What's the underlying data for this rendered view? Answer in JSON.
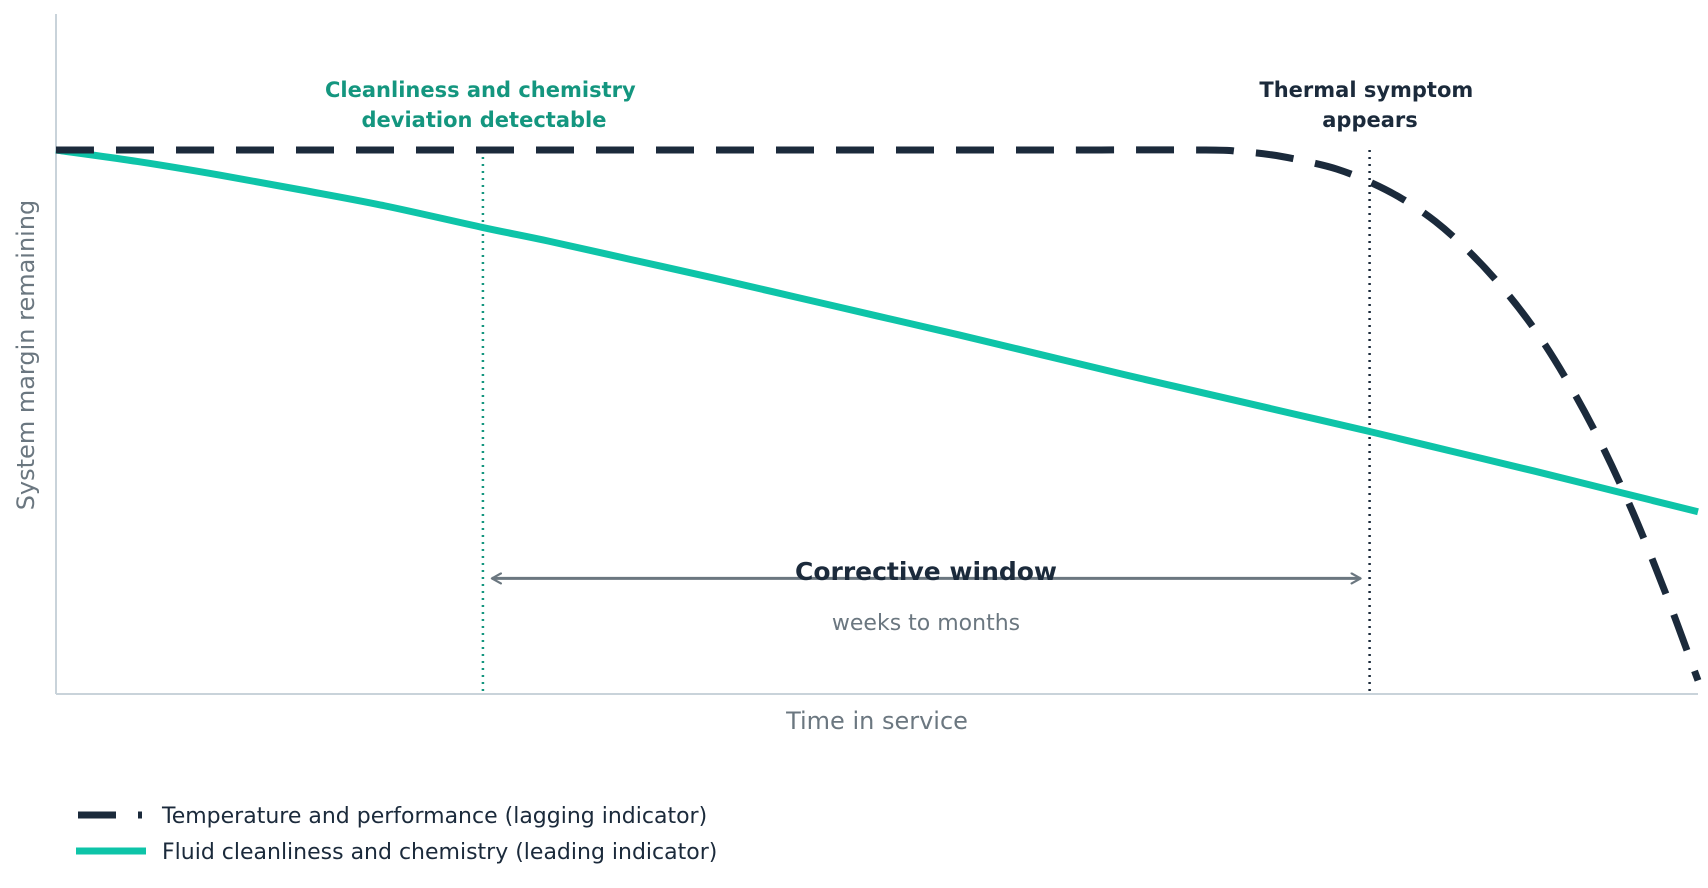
{
  "chart_data": {
    "type": "line",
    "xlabel": "Time in service",
    "ylabel": "System margin remaining",
    "xlim": [
      0,
      100
    ],
    "ylim": [
      0,
      100
    ],
    "grid": false,
    "legend_position": "bottom-left",
    "series": [
      {
        "name": "Temperature and performance (lagging indicator)",
        "style": "dashed",
        "color": "#1b2a3b",
        "x": [
          0,
          10,
          20,
          30,
          40,
          50,
          60,
          70,
          72,
          74,
          76,
          78,
          80,
          82,
          84,
          86,
          88,
          90,
          92,
          94,
          96,
          98,
          100
        ],
        "y": [
          80,
          80,
          80,
          80,
          80,
          80,
          80,
          80,
          79.8,
          79.3,
          78.4,
          77.2,
          75.3,
          72.8,
          69.5,
          65.2,
          60.0,
          53.8,
          46.2,
          37.3,
          26.9,
          15.0,
          2.0
        ]
      },
      {
        "name": "Fluid cleanliness and chemistry (leading indicator)",
        "style": "solid",
        "color": "#0ec4a8",
        "x": [
          0,
          5,
          10,
          15,
          20,
          26,
          30,
          35,
          40,
          45,
          50,
          55,
          60,
          65,
          70,
          75,
          80,
          85,
          90,
          95,
          100
        ],
        "y": [
          80,
          78.3,
          76.3,
          74.1,
          71.8,
          68.6,
          66.6,
          63.9,
          61.2,
          58.4,
          55.6,
          52.8,
          49.9,
          47.0,
          44.2,
          41.4,
          38.6,
          35.7,
          32.8,
          29.8,
          26.8
        ]
      }
    ],
    "markers": [
      {
        "x": 26,
        "color": "#14967f",
        "label_lines": [
          "Cleanliness and chemistry",
          "deviation detectable"
        ]
      },
      {
        "x": 80,
        "color": "#1b2a3b",
        "label_lines": [
          "Thermal symptom",
          "appears"
        ]
      }
    ],
    "corrective_window": {
      "x_start": 26,
      "x_end": 80,
      "y": 17,
      "title": "Corrective window",
      "subtitle": "weeks to months"
    }
  }
}
